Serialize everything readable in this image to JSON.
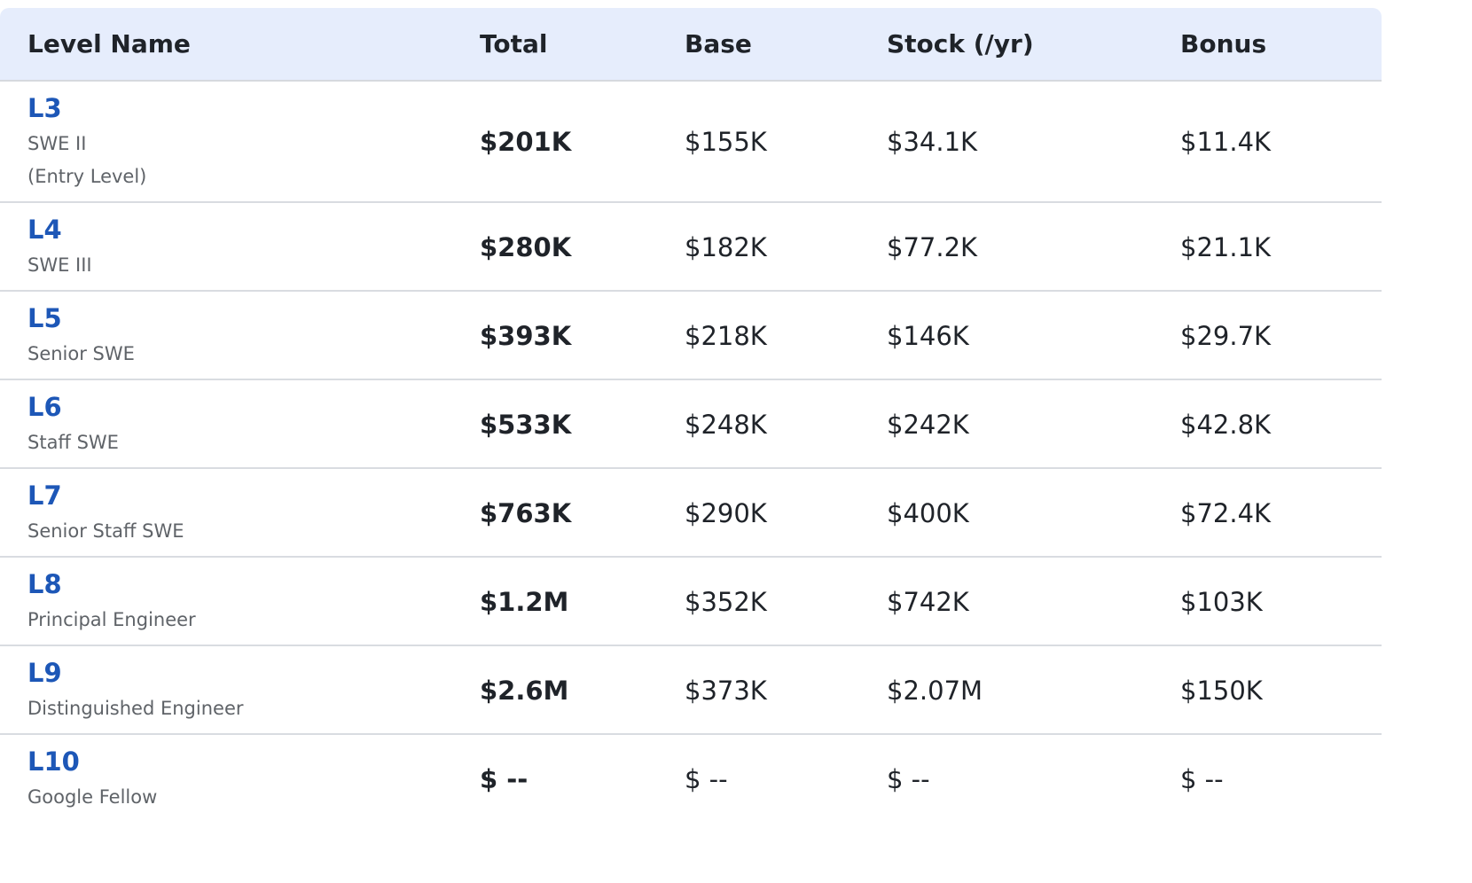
{
  "header": {
    "level_name": "Level Name",
    "total": "Total",
    "base": "Base",
    "stock": "Stock (/yr)",
    "bonus": "Bonus"
  },
  "rows": [
    {
      "level": "L3",
      "title1": "SWE II",
      "title2": "(Entry Level)",
      "total": "$201K",
      "base": "$155K",
      "stock": "$34.1K",
      "bonus": "$11.4K"
    },
    {
      "level": "L4",
      "title1": "SWE III",
      "total": "$280K",
      "base": "$182K",
      "stock": "$77.2K",
      "bonus": "$21.1K"
    },
    {
      "level": "L5",
      "title1": "Senior SWE",
      "total": "$393K",
      "base": "$218K",
      "stock": "$146K",
      "bonus": "$29.7K"
    },
    {
      "level": "L6",
      "title1": "Staff SWE",
      "total": "$533K",
      "base": "$248K",
      "stock": "$242K",
      "bonus": "$42.8K"
    },
    {
      "level": "L7",
      "title1": "Senior Staff SWE",
      "total": "$763K",
      "base": "$290K",
      "stock": "$400K",
      "bonus": "$72.4K"
    },
    {
      "level": "L8",
      "title1": "Principal Engineer",
      "total": "$1.2M",
      "base": "$352K",
      "stock": "$742K",
      "bonus": "$103K"
    },
    {
      "level": "L9",
      "title1": "Distinguished Engineer",
      "total": "$2.6M",
      "base": "$373K",
      "stock": "$2.07M",
      "bonus": "$150K"
    },
    {
      "level": "L10",
      "title1": "Google Fellow",
      "total": "$ --",
      "base": "$ --",
      "stock": "$ --",
      "bonus": "$ --"
    }
  ]
}
